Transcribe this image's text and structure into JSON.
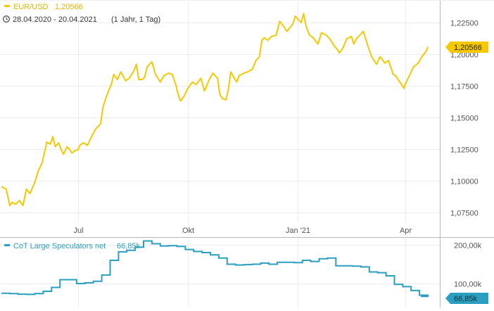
{
  "colors": {
    "primary": "#f5c800",
    "secondary": "#2a9fc0",
    "grid": "#ececec",
    "axis": "#b7b7b7"
  },
  "icons": {
    "range": "clock-icon"
  },
  "header": {
    "legend_name": "EUR/USD",
    "legend_value": "1,20566",
    "date_range": "28.04.2020 - 20.04.2021",
    "period": "(1 Jahr, 1 Tag)"
  },
  "bottom_legend": {
    "label": "CoT Large Speculators net",
    "value": "66,85k"
  },
  "chart_data": [
    {
      "type": "line",
      "title": "EUR/USD",
      "ylim": [
        1.065,
        1.237
      ],
      "yticks": [
        1.075,
        1.1,
        1.125,
        1.15,
        1.175,
        1.2,
        1.225
      ],
      "ytick_labels": [
        "1,07500",
        "1,10000",
        "1,12500",
        "1,15000",
        "1,17500",
        "1,20000",
        "1,22500"
      ],
      "xticks": [
        "2020-07-01",
        "2020-10-01",
        "2021-01-01",
        "2021-04-01"
      ],
      "xtick_labels": [
        "Jul",
        "Okt",
        "Jan '21",
        "Apr"
      ],
      "last_value": 1.20566,
      "last_value_label": "1,20566",
      "series": [
        {
          "name": "EUR/USD",
          "x": [
            "2020-04-28",
            "2020-05-02",
            "2020-05-05",
            "2020-05-07",
            "2020-05-10",
            "2020-05-13",
            "2020-05-16",
            "2020-05-19",
            "2020-05-22",
            "2020-05-26",
            "2020-05-29",
            "2020-06-01",
            "2020-06-03",
            "2020-06-05",
            "2020-06-08",
            "2020-06-10",
            "2020-06-12",
            "2020-06-15",
            "2020-06-17",
            "2020-06-19",
            "2020-06-22",
            "2020-06-24",
            "2020-06-26",
            "2020-06-29",
            "2020-07-01",
            "2020-07-03",
            "2020-07-06",
            "2020-07-09",
            "2020-07-13",
            "2020-07-16",
            "2020-07-20",
            "2020-07-22",
            "2020-07-24",
            "2020-07-27",
            "2020-07-29",
            "2020-07-31",
            "2020-08-03",
            "2020-08-06",
            "2020-08-10",
            "2020-08-13",
            "2020-08-17",
            "2020-08-19",
            "2020-08-21",
            "2020-08-24",
            "2020-08-26",
            "2020-08-28",
            "2020-09-01",
            "2020-09-04",
            "2020-09-08",
            "2020-09-11",
            "2020-09-15",
            "2020-09-18",
            "2020-09-21",
            "2020-09-23",
            "2020-09-25",
            "2020-09-28",
            "2020-10-01",
            "2020-10-05",
            "2020-10-08",
            "2020-10-12",
            "2020-10-15",
            "2020-10-19",
            "2020-10-22",
            "2020-10-26",
            "2020-10-28",
            "2020-10-30",
            "2020-11-02",
            "2020-11-04",
            "2020-11-06",
            "2020-11-09",
            "2020-11-11",
            "2020-11-13",
            "2020-11-17",
            "2020-11-20",
            "2020-11-24",
            "2020-11-27",
            "2020-11-30",
            "2020-12-02",
            "2020-12-04",
            "2020-12-07",
            "2020-12-10",
            "2020-12-14",
            "2020-12-17",
            "2020-12-21",
            "2020-12-23",
            "2020-12-28",
            "2020-12-30",
            "2021-01-04",
            "2021-01-06",
            "2021-01-08",
            "2021-01-11",
            "2021-01-14",
            "2021-01-18",
            "2021-01-21",
            "2021-01-25",
            "2021-01-28",
            "2021-02-01",
            "2021-02-03",
            "2021-02-05",
            "2021-02-08",
            "2021-02-11",
            "2021-02-15",
            "2021-02-17",
            "2021-02-19",
            "2021-02-22",
            "2021-02-25",
            "2021-03-01",
            "2021-03-04",
            "2021-03-08",
            "2021-03-11",
            "2021-03-15",
            "2021-03-18",
            "2021-03-22",
            "2021-03-24",
            "2021-03-26",
            "2021-03-29",
            "2021-03-31",
            "2021-04-01",
            "2021-04-05",
            "2021-04-08",
            "2021-04-12",
            "2021-04-15",
            "2021-04-19",
            "2021-04-20"
          ],
          "values": [
            1.0955,
            1.0935,
            1.0805,
            1.083,
            1.0815,
            1.0845,
            1.0805,
            1.0935,
            1.09,
            1.099,
            1.108,
            1.114,
            1.122,
            1.1305,
            1.129,
            1.135,
            1.127,
            1.13,
            1.1245,
            1.121,
            1.127,
            1.125,
            1.122,
            1.124,
            1.1245,
            1.1285,
            1.13,
            1.128,
            1.136,
            1.141,
            1.145,
            1.158,
            1.164,
            1.172,
            1.176,
            1.184,
            1.18,
            1.186,
            1.179,
            1.181,
            1.187,
            1.192,
            1.18,
            1.18,
            1.182,
            1.19,
            1.194,
            1.184,
            1.178,
            1.183,
            1.185,
            1.184,
            1.176,
            1.168,
            1.163,
            1.167,
            1.173,
            1.178,
            1.176,
            1.181,
            1.171,
            1.18,
            1.185,
            1.181,
            1.168,
            1.165,
            1.164,
            1.172,
            1.186,
            1.181,
            1.178,
            1.183,
            1.185,
            1.186,
            1.188,
            1.195,
            1.198,
            1.211,
            1.213,
            1.211,
            1.214,
            1.215,
            1.226,
            1.221,
            1.218,
            1.224,
            1.23,
            1.225,
            1.232,
            1.222,
            1.215,
            1.213,
            1.208,
            1.217,
            1.215,
            1.212,
            1.206,
            1.204,
            1.201,
            1.205,
            1.212,
            1.214,
            1.208,
            1.212,
            1.215,
            1.218,
            1.206,
            1.198,
            1.192,
            1.198,
            1.193,
            1.195,
            1.184,
            1.183,
            1.18,
            1.176,
            1.173,
            1.176,
            1.184,
            1.19,
            1.193,
            1.198,
            1.203,
            1.2057
          ]
        }
      ]
    },
    {
      "type": "line",
      "title": "CoT Large Speculators net",
      "ylim": [
        60,
        210
      ],
      "yticks": [
        100,
        200
      ],
      "ytick_labels": [
        "100,00k",
        "200,00k"
      ],
      "last_value": 66.85,
      "last_value_label": "66,85k",
      "series": [
        {
          "name": "CoT Large Speculators net",
          "x": [
            "2020-04-28",
            "2020-05-05",
            "2020-05-12",
            "2020-05-19",
            "2020-05-26",
            "2020-06-02",
            "2020-06-09",
            "2020-06-16",
            "2020-06-23",
            "2020-06-30",
            "2020-07-07",
            "2020-07-14",
            "2020-07-21",
            "2020-07-28",
            "2020-08-04",
            "2020-08-11",
            "2020-08-18",
            "2020-08-25",
            "2020-09-01",
            "2020-09-08",
            "2020-09-15",
            "2020-09-22",
            "2020-09-29",
            "2020-10-06",
            "2020-10-13",
            "2020-10-20",
            "2020-10-27",
            "2020-11-03",
            "2020-11-10",
            "2020-11-17",
            "2020-11-24",
            "2020-12-01",
            "2020-12-08",
            "2020-12-15",
            "2020-12-22",
            "2020-12-29",
            "2021-01-05",
            "2021-01-12",
            "2021-01-19",
            "2021-01-26",
            "2021-02-02",
            "2021-02-09",
            "2021-02-16",
            "2021-02-23",
            "2021-03-02",
            "2021-03-09",
            "2021-03-16",
            "2021-03-23",
            "2021-03-30",
            "2021-04-06",
            "2021-04-13",
            "2021-04-20"
          ],
          "values": [
            75.0,
            74.0,
            72.5,
            72.0,
            74.0,
            80.0,
            90.0,
            110.0,
            110.0,
            100.0,
            102.0,
            106.0,
            122.0,
            160.0,
            182.0,
            186.0,
            194.0,
            210.0,
            203.0,
            197.0,
            198.0,
            196.0,
            188.0,
            183.0,
            180.0,
            174.0,
            166.0,
            150.0,
            148.0,
            149.0,
            150.0,
            153.0,
            150.0,
            155.0,
            155.0,
            154.0,
            160.0,
            157.0,
            164.0,
            166.0,
            146.0,
            146.0,
            145.0,
            143.0,
            130.0,
            128.0,
            120.0,
            98.0,
            92.0,
            82.0,
            70.0,
            66.85
          ]
        }
      ]
    }
  ]
}
